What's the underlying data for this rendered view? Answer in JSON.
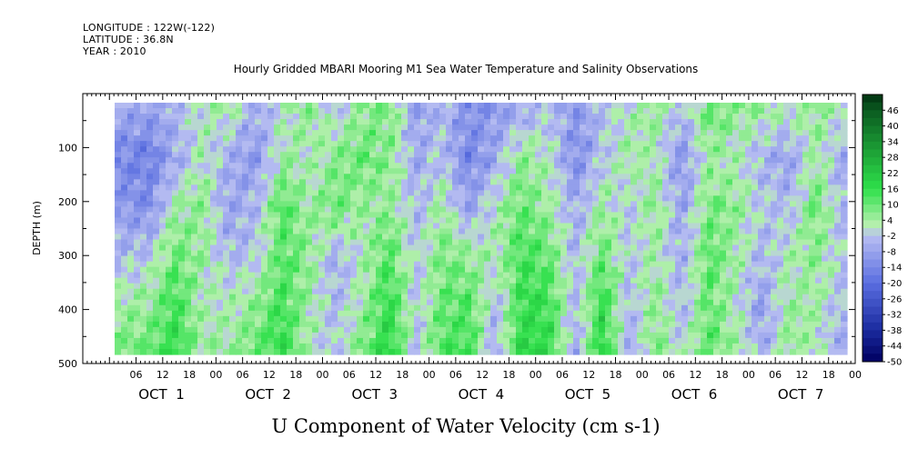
{
  "header": {
    "longitude": "LONGITUDE : 122W(-122)",
    "latitude": "LATITUDE : 36.8N",
    "year": "YEAR : 2010"
  },
  "chart_data": {
    "type": "heatmap",
    "title": "Hourly Gridded MBARI Mooring M1 Sea Water Temperature and Salinity Observations",
    "xlabel": "U Component of Water Velocity (cm s-1)",
    "ylabel": "DEPTH (m)",
    "x_hour_ticks": [
      "06",
      "12",
      "18",
      "00",
      "06",
      "12",
      "18",
      "00",
      "06",
      "12",
      "18",
      "00",
      "06",
      "12",
      "18",
      "00",
      "06",
      "12",
      "18",
      "00",
      "06",
      "12",
      "18",
      "00",
      "06",
      "12",
      "18",
      "00"
    ],
    "x_day_labels": [
      "OCT  1",
      "OCT  2",
      "OCT  3",
      "OCT  4",
      "OCT  5",
      "OCT  6",
      "OCT  7"
    ],
    "y_ticks": [
      100,
      200,
      300,
      400,
      500
    ],
    "y_range": [
      500,
      0
    ],
    "y_labels": [
      "100",
      "200",
      "300",
      "400",
      "500"
    ],
    "colorbar_labels": [
      "46",
      "40",
      "34",
      "28",
      "22",
      "16",
      "10",
      "4",
      "-2",
      "-8",
      "-14",
      "-20",
      "-26",
      "-32",
      "-38",
      "-44",
      "-50"
    ],
    "colorbar_range": [
      -50,
      52
    ],
    "colors": {
      "negative_strong": "#1a2a9e",
      "negative_mid": "#5a6ee0",
      "negative_light": "#b8bef2",
      "positive_light": "#b8f0b0",
      "positive_mid": "#2ee04a",
      "positive_strong": "#0a5a20"
    },
    "approx_field_cm_s": {
      "columns_hours_from_oct1_00": [
        3,
        9,
        15,
        21,
        27,
        33,
        39,
        45,
        51,
        57,
        63,
        69,
        75,
        81,
        87,
        93,
        99,
        105,
        111,
        117,
        123,
        129,
        135,
        141,
        147,
        153,
        159,
        165
      ],
      "rows_depth_m": [
        30,
        120,
        210,
        300,
        390,
        470
      ],
      "values": [
        [
          -6,
          -8,
          -4,
          2,
          4,
          -6,
          0,
          6,
          -2,
          6,
          8,
          -8,
          -4,
          -12,
          -10,
          -6,
          -2,
          -10,
          -4,
          2,
          6,
          -4,
          10,
          6,
          4,
          2,
          6,
          2
        ],
        [
          -14,
          -16,
          -6,
          2,
          -6,
          -10,
          4,
          2,
          6,
          10,
          6,
          -6,
          -2,
          -14,
          -6,
          6,
          2,
          -12,
          -2,
          4,
          2,
          -10,
          4,
          2,
          -4,
          -8,
          4,
          -6
        ],
        [
          -10,
          -12,
          4,
          6,
          -8,
          -4,
          12,
          4,
          10,
          4,
          6,
          -4,
          4,
          -8,
          2,
          10,
          4,
          -6,
          4,
          -2,
          6,
          -8,
          8,
          6,
          -2,
          -4,
          10,
          -4
        ],
        [
          -4,
          -2,
          10,
          4,
          -4,
          -2,
          12,
          6,
          -6,
          2,
          12,
          -2,
          8,
          6,
          2,
          14,
          10,
          -4,
          10,
          -2,
          4,
          -6,
          12,
          4,
          -4,
          2,
          6,
          -2
        ],
        [
          4,
          6,
          14,
          2,
          2,
          6,
          14,
          4,
          -4,
          4,
          16,
          -2,
          10,
          12,
          -4,
          16,
          14,
          -4,
          16,
          -4,
          6,
          -4,
          10,
          2,
          -8,
          4,
          4,
          -4
        ],
        [
          8,
          10,
          16,
          4,
          4,
          10,
          16,
          2,
          -2,
          8,
          18,
          -2,
          12,
          14,
          -6,
          18,
          16,
          -6,
          18,
          -6,
          8,
          -2,
          12,
          4,
          -6,
          6,
          2,
          -6
        ]
      ]
    }
  }
}
